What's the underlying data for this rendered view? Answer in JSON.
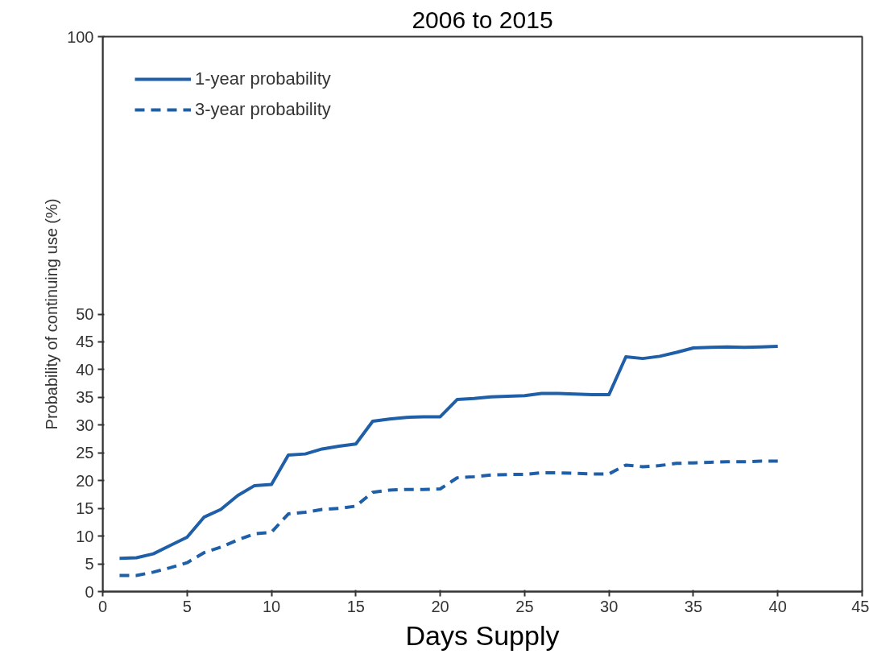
{
  "chart_data": {
    "type": "line",
    "title": "2006 to 2015",
    "xlabel": "Days Supply",
    "ylabel": "Probability of continuing use (%)",
    "x": [
      1,
      2,
      3,
      4,
      5,
      6,
      7,
      8,
      9,
      10,
      11,
      12,
      13,
      14,
      15,
      16,
      17,
      18,
      19,
      20,
      21,
      22,
      23,
      24,
      25,
      26,
      27,
      28,
      29,
      30,
      31,
      32,
      33,
      34,
      35,
      36,
      37,
      38,
      39,
      40
    ],
    "series": [
      {
        "name": "1-year probability",
        "color": "#1f5fa8",
        "line_style": "solid",
        "values": [
          6.0,
          6.1,
          6.8,
          8.3,
          9.8,
          13.4,
          14.8,
          17.3,
          19.1,
          19.3,
          24.6,
          24.8,
          25.7,
          26.2,
          26.6,
          30.7,
          31.1,
          31.4,
          31.5,
          31.5,
          34.6,
          34.8,
          35.1,
          35.2,
          35.3,
          35.7,
          35.7,
          35.6,
          35.5,
          35.5,
          42.3,
          42.0,
          42.4,
          43.1,
          43.9,
          44.0,
          44.1,
          44.0,
          44.1,
          44.2
        ]
      },
      {
        "name": "3-year probability",
        "color": "#1f5fa8",
        "line_style": "dashed",
        "values": [
          2.9,
          2.9,
          3.5,
          4.3,
          5.2,
          7.0,
          8.0,
          9.3,
          10.4,
          10.7,
          14.0,
          14.3,
          14.8,
          15.0,
          15.4,
          17.9,
          18.3,
          18.4,
          18.4,
          18.5,
          20.5,
          20.7,
          21.0,
          21.1,
          21.1,
          21.4,
          21.4,
          21.3,
          21.2,
          21.2,
          22.8,
          22.5,
          22.7,
          23.1,
          23.2,
          23.3,
          23.4,
          23.4,
          23.5,
          23.5
        ]
      }
    ],
    "xlim": [
      0,
      45
    ],
    "xticks": [
      0,
      5,
      10,
      15,
      20,
      25,
      30,
      35,
      40,
      45
    ],
    "ylim": [
      0,
      100
    ],
    "yticks": [
      0,
      5,
      10,
      15,
      20,
      25,
      30,
      35,
      40,
      45,
      50,
      100
    ],
    "legend": "top left",
    "grid": false,
    "marker": "none"
  }
}
